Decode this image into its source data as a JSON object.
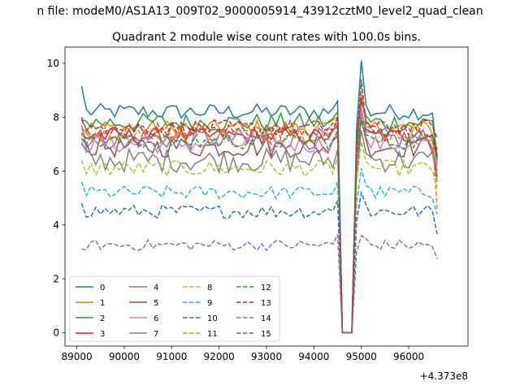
{
  "suptitle": "n file: modeM0/AS1A13_009T02_9000005914_43912cztM0_level2_quad_clean",
  "chart_data": {
    "type": "line",
    "title": "Quadrant 2 module wise count rates with 100.0s bins.",
    "xlabel": "",
    "ylabel": "",
    "x_offset_label": "+4.373e8",
    "xlim": [
      88750,
      97250
    ],
    "ylim": [
      -0.5,
      10.6
    ],
    "xticks": [
      89000,
      90000,
      91000,
      92000,
      93000,
      94000,
      95000,
      96000
    ],
    "yticks": [
      0,
      2,
      4,
      6,
      8,
      10
    ],
    "grid": false,
    "legend_position": "bottom-left",
    "legend_columns": 4,
    "x_start": 89100,
    "x_step": 100,
    "x_end": 96600,
    "gap": {
      "start": 94600,
      "end": 94800,
      "value": 0
    },
    "series": [
      {
        "name": "0",
        "color": "#1f77b4",
        "dash": "solid",
        "level": 8.2,
        "noise": 0.3,
        "first": 9.15,
        "peak": 10.1,
        "end": 6.4
      },
      {
        "name": "1",
        "color": "#ff7f0e",
        "dash": "solid",
        "level": 7.6,
        "noise": 0.3,
        "first": 7.6,
        "peak": 8.9,
        "end": 6.3
      },
      {
        "name": "2",
        "color": "#2ca02c",
        "dash": "solid",
        "level": 7.8,
        "noise": 0.35,
        "first": 7.9,
        "peak": 8.6,
        "end": 6.5
      },
      {
        "name": "3",
        "color": "#d62728",
        "dash": "solid",
        "level": 7.3,
        "noise": 0.3,
        "first": 7.4,
        "peak": 8.2,
        "end": 6.6
      },
      {
        "name": "4",
        "color": "#9467bd",
        "dash": "solid",
        "level": 7.2,
        "noise": 0.4,
        "first": 7.7,
        "peak": 8.3,
        "end": 6.0
      },
      {
        "name": "5",
        "color": "#8c564b",
        "dash": "solid",
        "level": 6.9,
        "noise": 0.4,
        "first": 7.2,
        "peak": 7.9,
        "end": 5.8
      },
      {
        "name": "6",
        "color": "#e377c2",
        "dash": "solid",
        "level": 7.0,
        "noise": 0.35,
        "first": 7.1,
        "peak": 8.4,
        "end": 6.2
      },
      {
        "name": "7",
        "color": "#7f7f7f",
        "dash": "solid",
        "level": 6.4,
        "noise": 0.45,
        "first": 7.0,
        "peak": 7.5,
        "end": 5.6
      },
      {
        "name": "8",
        "color": "#bcbd22",
        "dash": "dashed",
        "level": 6.1,
        "noise": 0.3,
        "first": 6.4,
        "peak": 7.1,
        "end": 5.4
      },
      {
        "name": "9",
        "color": "#17becf",
        "dash": "dashed",
        "level": 5.2,
        "noise": 0.25,
        "first": 5.6,
        "peak": 6.1,
        "end": 4.4
      },
      {
        "name": "10",
        "color": "#1f77b4",
        "dash": "dashed",
        "level": 4.5,
        "noise": 0.25,
        "first": 4.8,
        "peak": 5.2,
        "end": 3.65
      },
      {
        "name": "11",
        "color": "#ff7f0e",
        "dash": "dashed",
        "level": 7.4,
        "noise": 0.3,
        "first": 7.3,
        "peak": 9.3,
        "end": 4.6
      },
      {
        "name": "12",
        "color": "#2ca02c",
        "dash": "dashed",
        "level": 7.1,
        "noise": 0.3,
        "first": 7.2,
        "peak": 8.0,
        "end": 6.4
      },
      {
        "name": "13",
        "color": "#d62728",
        "dash": "dashed",
        "level": 7.6,
        "noise": 0.3,
        "first": 7.9,
        "peak": 8.7,
        "end": 7.2
      },
      {
        "name": "14",
        "color": "#9467bd",
        "dash": "dashed",
        "level": 3.25,
        "noise": 0.2,
        "first": 3.1,
        "peak": 3.6,
        "end": 2.75
      },
      {
        "name": "15",
        "color": "#8c564b",
        "dash": "dashed",
        "level": 7.5,
        "noise": 0.3,
        "first": 8.0,
        "peak": 9.4,
        "end": 6.8
      }
    ]
  }
}
